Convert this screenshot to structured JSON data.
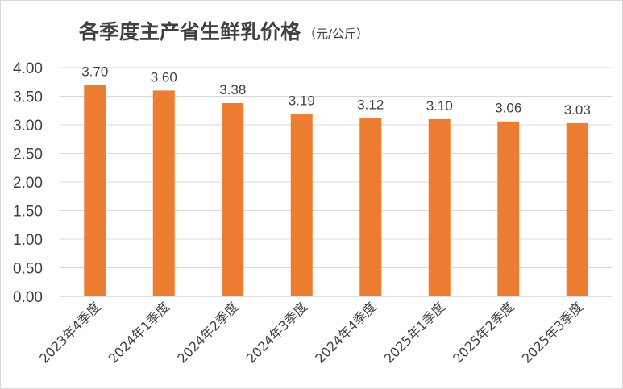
{
  "chart_data": {
    "type": "bar",
    "title": "各季度主产省生鲜乳价格",
    "unit": "（元/公斤）",
    "categories": [
      "2023年4季度",
      "2024年1季度",
      "2024年2季度",
      "2024年3季度",
      "2024年4季度",
      "2025年1季度",
      "2025年2季度",
      "2025年3季度"
    ],
    "values": [
      3.7,
      3.6,
      3.38,
      3.19,
      3.12,
      3.1,
      3.06,
      3.03
    ],
    "value_labels": [
      "3.70",
      "3.60",
      "3.38",
      "3.19",
      "3.12",
      "3.10",
      "3.06",
      "3.03"
    ],
    "ylim": [
      0,
      4
    ],
    "yticks": [
      "0.00",
      "0.50",
      "1.00",
      "1.50",
      "2.00",
      "2.50",
      "3.00",
      "3.50",
      "4.00"
    ],
    "grid": true,
    "bar_color": "#ED7D31"
  }
}
